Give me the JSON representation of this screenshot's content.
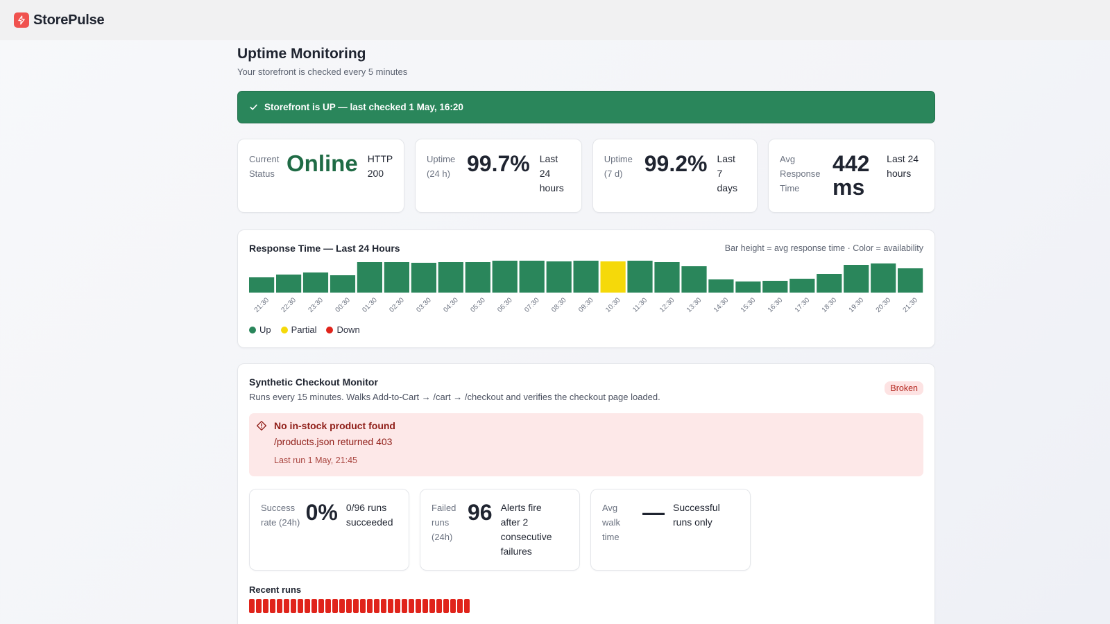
{
  "app": {
    "name": "StorePulse",
    "logo_icon": "bolt-icon",
    "brand_color": "#f0524f"
  },
  "page": {
    "title": "Uptime Monitoring",
    "subtitle": "Your storefront is checked every 5 minutes"
  },
  "banner": {
    "text": "Storefront is UP — last checked 1 May, 16:20",
    "icon": "check-icon",
    "color": "#2a865b"
  },
  "cards": [
    {
      "label": "Current Status",
      "value": "Online",
      "note": "HTTP 200"
    },
    {
      "label": "Uptime (24 h)",
      "value": "99.7%",
      "note": "Last 24 hours"
    },
    {
      "label": "Uptime (7 d)",
      "value": "99.2%",
      "note": "Last 7 days"
    },
    {
      "label": "Avg Response Time",
      "value": "442 ms",
      "note": "Last 24 hours"
    }
  ],
  "response_chart": {
    "title": "Response Time — Last 24 Hours",
    "note": "Bar height = avg response time · Color = availability",
    "legend": [
      {
        "label": "Up",
        "color": "#2a865b"
      },
      {
        "label": "Partial",
        "color": "#f5d90a"
      },
      {
        "label": "Down",
        "color": "#e0241b"
      }
    ]
  },
  "chart_data": {
    "type": "bar",
    "title": "Response Time — Last 24 Hours",
    "categories": [
      "21:30",
      "22:30",
      "23:30",
      "00:30",
      "01:30",
      "02:30",
      "03:30",
      "04:30",
      "05:30",
      "06:30",
      "07:30",
      "08:30",
      "09:30",
      "10:30",
      "11:30",
      "12:30",
      "13:30",
      "14:30",
      "15:30",
      "16:30",
      "17:30",
      "18:30",
      "19:30",
      "20:30",
      "21:30"
    ],
    "values": [
      22,
      26,
      29,
      25,
      44,
      44,
      43,
      44,
      44,
      46,
      46,
      45,
      46,
      45,
      46,
      44,
      38,
      19,
      16,
      17,
      20,
      27,
      40,
      42,
      35
    ],
    "status": [
      "up",
      "up",
      "up",
      "up",
      "up",
      "up",
      "up",
      "up",
      "up",
      "up",
      "up",
      "up",
      "up",
      "partial",
      "up",
      "up",
      "up",
      "up",
      "up",
      "up",
      "up",
      "up",
      "up",
      "up",
      "up"
    ],
    "status_colors": {
      "up": "#2a865b",
      "partial": "#f5d90a",
      "down": "#e0241b"
    },
    "ylim": [
      0,
      46
    ],
    "legend": [
      "Up",
      "Partial",
      "Down"
    ],
    "legend_position": "bottom-left",
    "grid": false
  },
  "synthetic": {
    "title": "Synthetic Checkout Monitor",
    "description": "Runs every 15 minutes. Walks Add-to-Cart → /cart → /checkout and verifies the checkout page loaded.",
    "badge": "Broken",
    "alert": {
      "icon": "warning-diamond-icon",
      "title": "No in-stock product found",
      "detail": "/products.json returned 403",
      "time": "Last run 1 May, 21:45"
    },
    "stats": [
      {
        "label": "Success rate (24h)",
        "value": "0%",
        "note": "0/96 runs succeeded"
      },
      {
        "label": "Failed runs (24h)",
        "value": "96",
        "note": "Alerts fire after 2 consecutive failures"
      },
      {
        "label": "Avg walk time",
        "value": "—",
        "note": "Successful runs only"
      }
    ],
    "recent_label": "Recent runs",
    "recent_runs": [
      "fail",
      "fail",
      "fail",
      "fail",
      "fail",
      "fail",
      "fail",
      "fail",
      "fail",
      "fail",
      "fail",
      "fail",
      "fail",
      "fail",
      "fail",
      "fail",
      "fail",
      "fail",
      "fail",
      "fail",
      "fail",
      "fail",
      "fail",
      "fail",
      "fail",
      "fail",
      "fail",
      "fail",
      "fail",
      "fail",
      "fail",
      "fail"
    ],
    "run_fail_color": "#e0241b"
  }
}
